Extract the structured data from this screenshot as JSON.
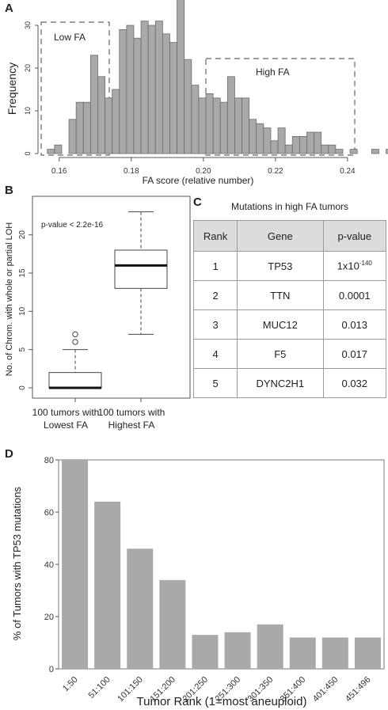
{
  "panels": {
    "a": "A",
    "b": "B",
    "c": "C",
    "d": "D"
  },
  "histogram": {
    "type": "bar",
    "xlabel": "FA score (relative number)",
    "ylabel": "Frequency",
    "xlim": [
      0.155,
      0.242
    ],
    "ylim": [
      0,
      35
    ],
    "xticks": [
      "0.16",
      "0.18",
      "0.20",
      "0.22",
      "0.24"
    ],
    "xtick_values": [
      0.16,
      0.18,
      0.2,
      0.22,
      0.24
    ],
    "yticks": [
      "0",
      "10",
      "20",
      "30"
    ],
    "ytick_values": [
      0,
      10,
      20,
      30
    ],
    "bin_start": 0.1567,
    "bin_width": 0.002,
    "values": [
      1,
      2,
      0,
      8,
      12,
      12,
      23,
      18,
      13,
      15,
      29,
      30,
      27,
      31,
      30,
      31,
      28,
      26,
      36,
      22,
      16,
      13,
      14,
      13,
      12,
      18,
      13,
      13,
      8,
      7,
      6,
      3,
      6,
      2,
      4,
      4,
      5,
      5,
      2,
      2,
      1,
      0,
      1,
      0,
      0,
      1,
      0,
      1
    ],
    "low_label": "Low FA",
    "high_label": "High FA"
  },
  "boxplot": {
    "type": "box",
    "ylabel": "No. of Chrom. with whole or partial LOH",
    "annotation": "p-value < 2.2e-16",
    "ylim": [
      0,
      24
    ],
    "yticks": [
      "0",
      "5",
      "10",
      "15",
      "20"
    ],
    "ytick_values": [
      0,
      5,
      10,
      15,
      20
    ],
    "groups": [
      {
        "label_line1": "100 tumors with",
        "label_line2": "Lowest FA",
        "whisker_low": 0,
        "q1": 0,
        "median": 0,
        "q3": 2,
        "whisker_high": 5,
        "outliers": [
          6,
          7
        ]
      },
      {
        "label_line1": "100 tumors with",
        "label_line2": "Highest FA",
        "whisker_low": 7,
        "q1": 13,
        "median": 16,
        "q3": 18,
        "whisker_high": 23,
        "outliers": []
      }
    ]
  },
  "table": {
    "title": "Mutations in high FA tumors",
    "headers": [
      "Rank",
      "Gene",
      "p-value"
    ],
    "rows": [
      {
        "rank": "1",
        "gene": "TP53",
        "p_base": "1x10",
        "p_exp": "-140"
      },
      {
        "rank": "2",
        "gene": "TTN",
        "p_base": "0.0001",
        "p_exp": ""
      },
      {
        "rank": "3",
        "gene": "MUC12",
        "p_base": "0.013",
        "p_exp": ""
      },
      {
        "rank": "4",
        "gene": "F5",
        "p_base": "0.017",
        "p_exp": ""
      },
      {
        "rank": "5",
        "gene": "DYNC2H1",
        "p_base": "0.032",
        "p_exp": ""
      }
    ]
  },
  "bars": {
    "type": "bar",
    "xlabel": "Tumor Rank (1=most aneuploid)",
    "ylabel": "% of Tumors with TP53 mutations",
    "ylim": [
      0,
      80
    ],
    "yticks": [
      "0",
      "20",
      "40",
      "60",
      "80"
    ],
    "ytick_values": [
      0,
      20,
      40,
      60,
      80
    ],
    "categories": [
      "1:50",
      "51:100",
      "101:150",
      "151:200",
      "201:250",
      "251:300",
      "301:350",
      "351:400",
      "401:450",
      "451:496"
    ],
    "values": [
      80,
      64,
      46,
      34,
      13,
      14,
      17,
      12,
      12,
      12
    ]
  },
  "colors": {
    "bar_fill": "#a9a9a9",
    "bar_stroke": "#6b6b6b",
    "axis": "#555555",
    "dash": "#666666"
  }
}
